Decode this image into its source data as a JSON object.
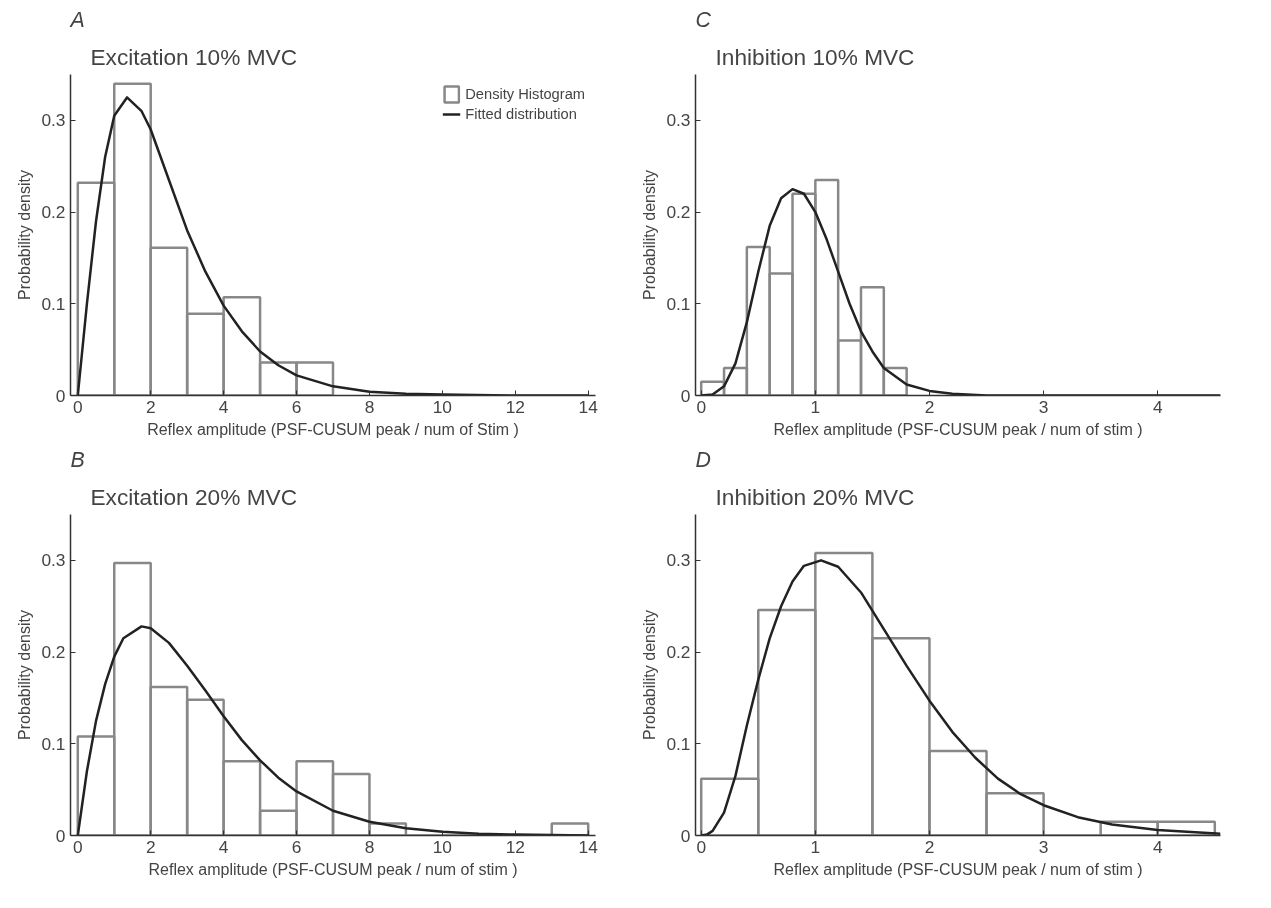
{
  "chart_data": [
    {
      "type": "histogram",
      "title": "Excitation 10% MVC",
      "annotations": [
        "A"
      ],
      "xlabel": "Reflex amplitude (PSF-CUSUM peak / num of Stim )",
      "ylabel": "Probability density",
      "xlim": [
        -0.2,
        14.2
      ],
      "ylim": [
        0,
        0.35
      ],
      "xticks": [
        0,
        2,
        4,
        6,
        8,
        10,
        12,
        14
      ],
      "yticks": [
        0,
        0.1,
        0.2,
        0.3
      ],
      "grid": false,
      "legend": "top right",
      "series": [
        {
          "name": "Density Histogram",
          "color": "#888888",
          "bins": [
            0,
            1,
            2,
            3,
            4,
            5,
            6,
            7
          ],
          "values": [
            0.232,
            0.34,
            0.161,
            0.089,
            0.107,
            0.036,
            0.036
          ]
        },
        {
          "name": "Fitted distribution",
          "type": "line",
          "color": "#222222",
          "x": [
            0,
            0.25,
            0.5,
            0.75,
            1,
            1.35,
            1.75,
            2,
            2.5,
            3,
            3.5,
            4,
            4.5,
            5,
            5.5,
            6,
            7,
            8,
            9,
            10,
            12,
            14
          ],
          "values": [
            0,
            0.1,
            0.19,
            0.26,
            0.305,
            0.325,
            0.31,
            0.29,
            0.235,
            0.18,
            0.135,
            0.098,
            0.07,
            0.048,
            0.033,
            0.022,
            0.01,
            0.004,
            0.002,
            0.001,
            0,
            0
          ]
        }
      ]
    },
    {
      "type": "histogram",
      "title": "Inhibition 10% MVC",
      "annotations": [
        "C"
      ],
      "xlabel": "Reflex amplitude (PSF-CUSUM peak / num of stim )",
      "ylabel": "Probability density",
      "xlim": [
        -0.05,
        4.55
      ],
      "ylim": [
        0,
        0.35
      ],
      "xticks": [
        0,
        1,
        2,
        3,
        4
      ],
      "yticks": [
        0,
        0.1,
        0.2,
        0.3
      ],
      "grid": false,
      "legend": false,
      "series": [
        {
          "color": "#888888",
          "bins": [
            0,
            0.2,
            0.4,
            0.6,
            0.8,
            1.0,
            1.2,
            1.4,
            1.6,
            1.8
          ],
          "values": [
            0.015,
            0.03,
            0.162,
            0.133,
            0.22,
            0.235,
            0.06,
            0.118,
            0.03
          ]
        },
        {
          "type": "line",
          "color": "#222222",
          "x": [
            0,
            0.1,
            0.2,
            0.3,
            0.4,
            0.5,
            0.6,
            0.7,
            0.8,
            0.9,
            1.0,
            1.1,
            1.2,
            1.3,
            1.4,
            1.5,
            1.6,
            1.8,
            2.0,
            2.2,
            2.5,
            3,
            4.55
          ],
          "values": [
            0,
            0.001,
            0.01,
            0.035,
            0.08,
            0.135,
            0.185,
            0.215,
            0.225,
            0.22,
            0.2,
            0.17,
            0.135,
            0.1,
            0.07,
            0.048,
            0.03,
            0.012,
            0.005,
            0.002,
            0,
            0,
            0
          ]
        }
      ]
    },
    {
      "type": "histogram",
      "title": "Excitation 20% MVC",
      "annotations": [
        "B"
      ],
      "xlabel": "Reflex amplitude (PSF-CUSUM peak / num of stim )",
      "ylabel": "Probability density",
      "xlim": [
        -0.2,
        14.2
      ],
      "ylim": [
        0,
        0.35
      ],
      "xticks": [
        0,
        2,
        4,
        6,
        8,
        10,
        12,
        14
      ],
      "yticks": [
        0,
        0.1,
        0.2,
        0.3
      ],
      "grid": false,
      "legend": false,
      "series": [
        {
          "color": "#888888",
          "bins": [
            0,
            1,
            2,
            3,
            4,
            5,
            6,
            7,
            8,
            9,
            10,
            11,
            12,
            13,
            14
          ],
          "values": [
            0.108,
            0.297,
            0.162,
            0.148,
            0.081,
            0.027,
            0.081,
            0.067,
            0.013,
            0,
            0,
            0,
            0,
            0.013
          ]
        },
        {
          "type": "line",
          "color": "#222222",
          "x": [
            0,
            0.25,
            0.5,
            0.75,
            1,
            1.25,
            1.75,
            2,
            2.5,
            3,
            3.5,
            4,
            4.5,
            5,
            5.5,
            6,
            7,
            8,
            9,
            10,
            11,
            12,
            14
          ],
          "values": [
            0,
            0.07,
            0.125,
            0.165,
            0.195,
            0.215,
            0.228,
            0.226,
            0.21,
            0.185,
            0.158,
            0.13,
            0.104,
            0.082,
            0.063,
            0.048,
            0.027,
            0.015,
            0.008,
            0.004,
            0.002,
            0.001,
            0
          ]
        }
      ]
    },
    {
      "type": "histogram",
      "title": "Inhibition 20% MVC",
      "annotations": [
        "D"
      ],
      "xlabel": "Reflex amplitude (PSF-CUSUM peak / num of stim )",
      "ylabel": "Probability density",
      "xlim": [
        -0.05,
        4.55
      ],
      "ylim": [
        0,
        0.35
      ],
      "xticks": [
        0,
        1,
        2,
        3,
        4
      ],
      "yticks": [
        0,
        0.1,
        0.2,
        0.3
      ],
      "grid": false,
      "legend": false,
      "series": [
        {
          "color": "#888888",
          "bins": [
            0,
            0.5,
            1.0,
            1.5,
            2.0,
            2.5,
            3.0,
            3.5,
            4.0,
            4.5
          ],
          "values": [
            0.062,
            0.246,
            0.308,
            0.215,
            0.092,
            0.046,
            0,
            0.015,
            0.015
          ]
        },
        {
          "type": "line",
          "color": "#222222",
          "x": [
            0,
            0.05,
            0.1,
            0.2,
            0.3,
            0.4,
            0.5,
            0.6,
            0.7,
            0.8,
            0.9,
            1.05,
            1.2,
            1.4,
            1.6,
            1.8,
            2.0,
            2.2,
            2.4,
            2.6,
            2.8,
            3.0,
            3.3,
            3.6,
            4.0,
            4.55
          ],
          "values": [
            0,
            0.001,
            0.005,
            0.025,
            0.065,
            0.12,
            0.17,
            0.215,
            0.25,
            0.277,
            0.294,
            0.3,
            0.293,
            0.265,
            0.225,
            0.185,
            0.147,
            0.113,
            0.085,
            0.062,
            0.045,
            0.033,
            0.02,
            0.012,
            0.006,
            0.002
          ]
        }
      ]
    }
  ]
}
